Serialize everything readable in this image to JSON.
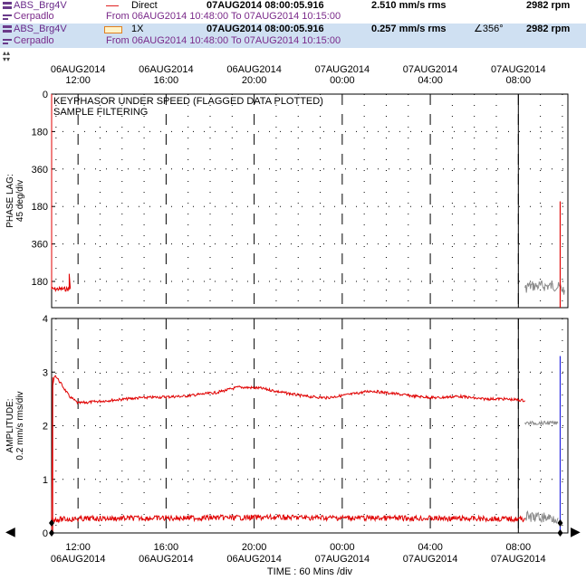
{
  "header": {
    "rows": [
      {
        "point": "ABS_Brg4V",
        "machine": "Cerpadlo",
        "legend_label": "Direct",
        "legend_color": "#e02020",
        "timestamp": "07AUG2014 08:00:05.916",
        "value": "2.510 mm/s rms",
        "phase": "",
        "speed": "2982 rpm",
        "range": "From 06AUG2014 10:48:00 To 07AUG2014 10:15:00",
        "selected": false
      },
      {
        "point": "ABS_Brg4V",
        "machine": "Cerpadlo",
        "legend_label": "1X",
        "legend_color": "#e08020",
        "timestamp": "07AUG2014 08:00:05.916",
        "value": "0.257 mm/s rms",
        "phase": "∠356°",
        "speed": "2982 rpm",
        "range": "From 06AUG2014 10:48:00 To 07AUG2014 10:15:00",
        "selected": true
      }
    ]
  },
  "colors": {
    "trace": "#e00000",
    "gray": "#8a8a8a",
    "cursor_blue": "#2020e0",
    "grid": "#000000"
  },
  "chart_data": {
    "type": "line",
    "x_unit": "hours from 06AUG2014 10:48",
    "xlim": [
      0,
      23.45
    ],
    "top_axis_ticks": [
      {
        "time": "12:00",
        "date": "06AUG2014",
        "x": 1.2
      },
      {
        "time": "16:00",
        "date": "06AUG2014",
        "x": 5.2
      },
      {
        "time": "20:00",
        "date": "06AUG2014",
        "x": 9.2
      },
      {
        "time": "00:00",
        "date": "07AUG2014",
        "x": 13.2
      },
      {
        "time": "04:00",
        "date": "07AUG2014",
        "x": 17.2
      },
      {
        "time": "08:00",
        "date": "07AUG2014",
        "x": 21.2
      }
    ],
    "xlabel": "TIME : 60 Mins /div",
    "cursor_x": 21.2,
    "phase_panel": {
      "ylabel_line1": "PHASE LAG:",
      "ylabel_line2": "45 deg/div",
      "tick_labels": [
        "0",
        "180",
        "360",
        "180",
        "360",
        "180"
      ],
      "annotation_line1": "KEYPHASOR UNDER SPEED (FLAGGED DATA PLOTTED)",
      "annotation_line2": "SAMPLE FILTERING",
      "ylim": [
        0,
        1035
      ],
      "series": {
        "name": "1X",
        "points": [
          [
            0,
            0
          ],
          [
            0,
            945
          ],
          [
            0.8,
            945
          ],
          [
            0.8,
            870
          ],
          [
            0.85,
            945
          ],
          [
            21.5,
            950
          ],
          [
            21.6,
            930
          ],
          [
            22.9,
            930
          ],
          [
            23.3,
            950
          ]
        ]
      }
    },
    "amplitude_panel": {
      "ylabel_line1": "AMPLITUDE:",
      "ylabel_line2": "0.2 mm/s rms/div",
      "tick_labels": [
        "0",
        "1",
        "2",
        "3",
        "4"
      ],
      "ylim": [
        0,
        4
      ],
      "direct": {
        "name": "Direct",
        "points": [
          [
            0,
            0
          ],
          [
            0.05,
            2.75
          ],
          [
            0.15,
            2.95
          ],
          [
            0.4,
            2.8
          ],
          [
            0.8,
            2.55
          ],
          [
            1.2,
            2.42
          ],
          [
            2,
            2.45
          ],
          [
            4,
            2.52
          ],
          [
            6,
            2.55
          ],
          [
            7.5,
            2.62
          ],
          [
            8.5,
            2.72
          ],
          [
            9.5,
            2.7
          ],
          [
            10.5,
            2.62
          ],
          [
            11.5,
            2.55
          ],
          [
            12.5,
            2.52
          ],
          [
            13.5,
            2.58
          ],
          [
            14.5,
            2.65
          ],
          [
            15.5,
            2.6
          ],
          [
            16.5,
            2.55
          ],
          [
            17.5,
            2.52
          ],
          [
            18.5,
            2.55
          ],
          [
            19.5,
            2.5
          ],
          [
            20.5,
            2.5
          ],
          [
            21.2,
            2.48
          ],
          [
            21.5,
            2.47
          ]
        ]
      },
      "direct_gray": {
        "points": [
          [
            21.5,
            2.05
          ],
          [
            23.0,
            2.05
          ]
        ]
      },
      "onex": {
        "name": "1X",
        "points": [
          [
            0,
            0.25
          ],
          [
            2,
            0.27
          ],
          [
            6,
            0.28
          ],
          [
            10,
            0.29
          ],
          [
            14,
            0.28
          ],
          [
            18,
            0.27
          ],
          [
            21.5,
            0.26
          ]
        ]
      },
      "onex_gray": {
        "points": [
          [
            21.5,
            0.3
          ],
          [
            23.0,
            0.28
          ]
        ]
      }
    }
  }
}
